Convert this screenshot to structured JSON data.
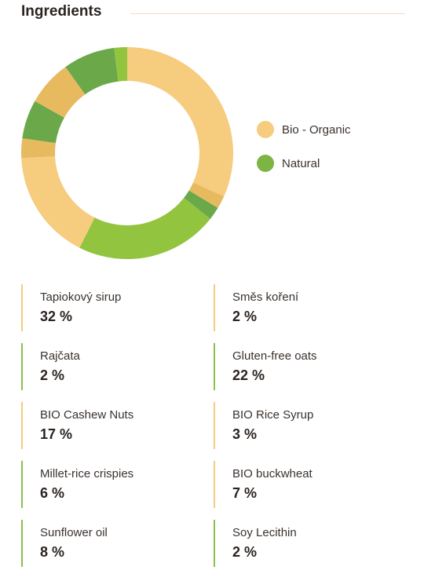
{
  "title": "Ingredients",
  "colors": {
    "organic": "#f6cc7e",
    "organic_dark": "#e8ba5f",
    "natural": "#93c43f",
    "natural_dark": "#6aa84a",
    "organic_border": "#f5cc7f",
    "natural_border": "#8cc04a"
  },
  "legend": [
    {
      "label": "Bio - Organic",
      "color": "#f6cc7e"
    },
    {
      "label": "Natural",
      "color": "#7db544"
    }
  ],
  "ingredients": [
    {
      "name": "Tapiokový sirup",
      "percent": "32 %",
      "type": "organic"
    },
    {
      "name": "Směs koření",
      "percent": "2 %",
      "type": "organic"
    },
    {
      "name": "Rajčata",
      "percent": "2 %",
      "type": "natural"
    },
    {
      "name": "Gluten-free oats",
      "percent": "22 %",
      "type": "natural"
    },
    {
      "name": "BIO Cashew Nuts",
      "percent": "17 %",
      "type": "organic"
    },
    {
      "name": "BIO Rice Syrup",
      "percent": "3 %",
      "type": "organic"
    },
    {
      "name": "Millet-rice crispies",
      "percent": "6 %",
      "type": "natural"
    },
    {
      "name": "BIO buckwheat",
      "percent": "7 %",
      "type": "organic"
    },
    {
      "name": "Sunflower oil",
      "percent": "8 %",
      "type": "natural"
    },
    {
      "name": "Soy Lecithin",
      "percent": "2 %",
      "type": "natural"
    }
  ],
  "chart_data": {
    "type": "pie",
    "categories": [
      "Tapiokový sirup",
      "Směs koření",
      "Rajčata",
      "Gluten-free oats",
      "BIO Cashew Nuts",
      "BIO Rice Syrup",
      "Millet-rice crispies",
      "BIO buckwheat",
      "Sunflower oil",
      "Soy Lecithin"
    ],
    "values": [
      32,
      2,
      2,
      22,
      17,
      3,
      6,
      7,
      8,
      2
    ],
    "colors": [
      "#f6cc7e",
      "#e8ba5f",
      "#6aa84a",
      "#93c43f",
      "#f6cc7e",
      "#e8ba5f",
      "#6aa84a",
      "#e8ba5f",
      "#6aa84a",
      "#93c43f"
    ],
    "donut": true,
    "legend_position": "right"
  }
}
